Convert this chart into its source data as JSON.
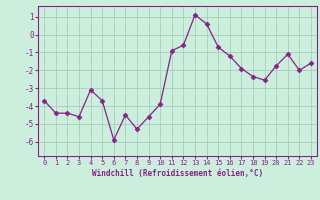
{
  "x": [
    0,
    1,
    2,
    3,
    4,
    5,
    6,
    7,
    8,
    9,
    10,
    11,
    12,
    13,
    14,
    15,
    16,
    17,
    18,
    19,
    20,
    21,
    22,
    23
  ],
  "y": [
    -3.7,
    -4.4,
    -4.4,
    -4.6,
    -3.1,
    -3.7,
    -5.9,
    -4.5,
    -5.3,
    -4.6,
    -3.9,
    -0.9,
    -0.6,
    1.1,
    0.6,
    -0.7,
    -1.2,
    -1.9,
    -2.35,
    -2.55,
    -1.75,
    -1.1,
    -2.0,
    -1.6
  ],
  "line_color": "#882288",
  "marker": "D",
  "marker_size": 2.5,
  "bg_color": "#cceedd",
  "grid_color": "#aaccbb",
  "xlabel": "Windchill (Refroidissement éolien,°C)",
  "ylim": [
    -6.8,
    1.6
  ],
  "xlim": [
    -0.5,
    23.5
  ],
  "yticks": [
    -6,
    -5,
    -4,
    -3,
    -2,
    -1,
    0,
    1
  ],
  "xticks": [
    0,
    1,
    2,
    3,
    4,
    5,
    6,
    7,
    8,
    9,
    10,
    11,
    12,
    13,
    14,
    15,
    16,
    17,
    18,
    19,
    20,
    21,
    22,
    23
  ],
  "xtick_labels": [
    "0",
    "1",
    "2",
    "3",
    "4",
    "5",
    "6",
    "7",
    "8",
    "9",
    "10",
    "11",
    "12",
    "13",
    "14",
    "15",
    "16",
    "17",
    "18",
    "19",
    "20",
    "21",
    "22",
    "23"
  ],
  "label_color": "#882288",
  "tick_color": "#882288",
  "spine_color": "#882288"
}
